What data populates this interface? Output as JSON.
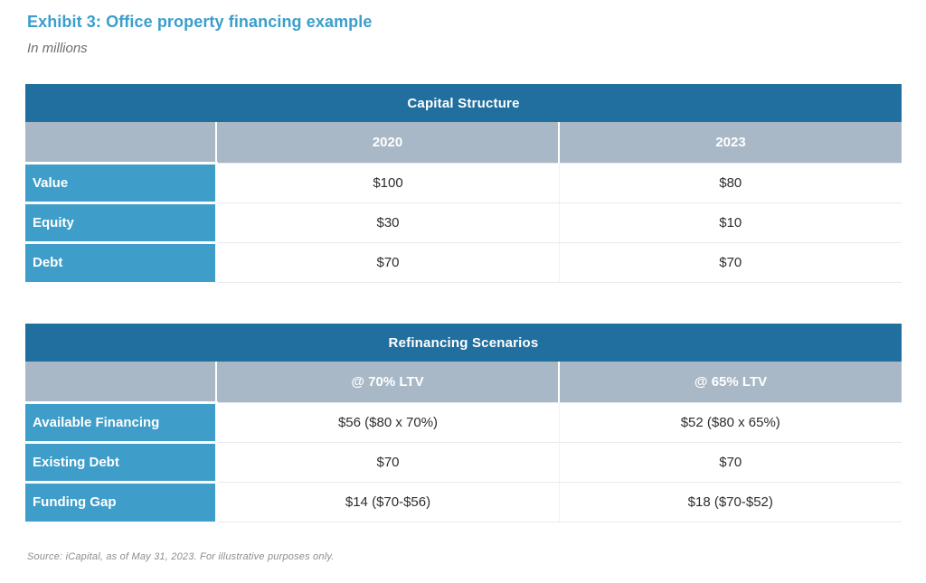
{
  "page": {
    "title": "Exhibit 3: Office property financing example",
    "subtitle": "In millions",
    "source": "Source: iCapital, as of May 31, 2023. For illustrative purposes only."
  },
  "colors": {
    "title_text": "#3b9ecb",
    "table_header_bg": "#216f9e",
    "column_header_bg": "#a9b8c6",
    "row_label_bg": "#3e9dc9",
    "body_text": "#2d2d2d",
    "muted_text": "#8a8d90"
  },
  "tables": [
    {
      "title": "Capital Structure",
      "columns": [
        "2020",
        "2023"
      ],
      "rows": [
        {
          "label": "Value",
          "values": [
            "$100",
            "$80"
          ]
        },
        {
          "label": "Equity",
          "values": [
            "$30",
            "$10"
          ]
        },
        {
          "label": "Debt",
          "values": [
            "$70",
            "$70"
          ]
        }
      ]
    },
    {
      "title": "Refinancing Scenarios",
      "columns": [
        "@ 70% LTV",
        "@ 65% LTV"
      ],
      "rows": [
        {
          "label": "Available Financing",
          "values": [
            "$56 ($80 x 70%)",
            "$52 ($80 x 65%)"
          ]
        },
        {
          "label": "Existing Debt",
          "values": [
            "$70",
            "$70"
          ]
        },
        {
          "label": "Funding Gap",
          "values": [
            "$14 ($70-$56)",
            "$18 ($70-$52)"
          ]
        }
      ]
    }
  ],
  "chart_data": [
    {
      "type": "table",
      "title": "Capital Structure",
      "columns": [
        "",
        "2020",
        "2023"
      ],
      "rows": [
        [
          "Value",
          "$100",
          "$80"
        ],
        [
          "Equity",
          "$30",
          "$10"
        ],
        [
          "Debt",
          "$70",
          "$70"
        ]
      ]
    },
    {
      "type": "table",
      "title": "Refinancing Scenarios",
      "columns": [
        "",
        "@ 70% LTV",
        "@ 65% LTV"
      ],
      "rows": [
        [
          "Available Financing",
          "$56 ($80 x 70%)",
          "$52 ($80 x 65%)"
        ],
        [
          "Existing Debt",
          "$70",
          "$70"
        ],
        [
          "Funding Gap",
          "$14 ($70-$56)",
          "$18 ($70-$52)"
        ]
      ]
    }
  ]
}
